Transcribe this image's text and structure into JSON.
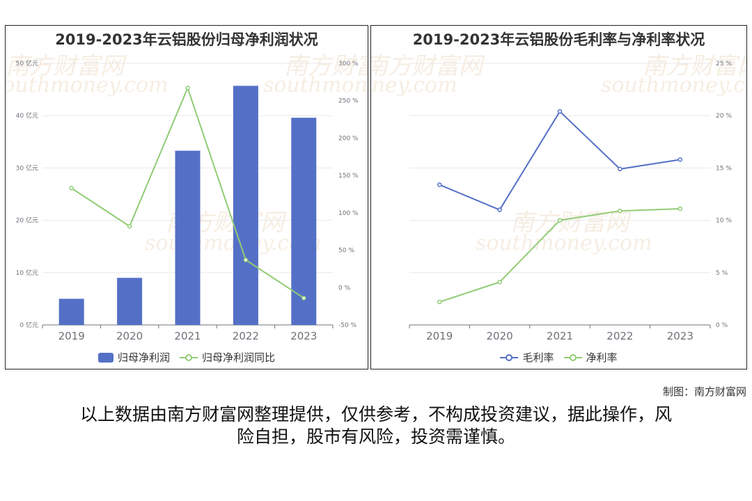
{
  "watermark": {
    "cn": "南方财富网",
    "en": "southmoney.com"
  },
  "credit": "制图：南方财富网",
  "disclaimer_line1": "以上数据由南方财富网整理提供，仅供参考，不构成投资建议，据此操作，风",
  "disclaimer_line2": "险自担，股市有风险，投资需谨慎。",
  "colors": {
    "blue": "#5470c6",
    "green": "#91cc75",
    "axis": "#6e7079",
    "grid": "#e8e8e8"
  },
  "chart_data": [
    {
      "type": "bar",
      "title": "2019-2023年云铝股份归母净利润状况",
      "categories": [
        "2019",
        "2020",
        "2021",
        "2022",
        "2023"
      ],
      "y_left": {
        "min": 0,
        "max": 50,
        "ticks": [
          0,
          10,
          20,
          30,
          40,
          50
        ],
        "unit": "亿元",
        "tick_labels": [
          "0 亿元",
          "10 亿元",
          "20 亿元",
          "30 亿元",
          "40 亿元",
          "50 亿元"
        ]
      },
      "y_right": {
        "min": -50,
        "max": 300,
        "ticks": [
          -50,
          0,
          50,
          100,
          150,
          200,
          250,
          300
        ],
        "unit": "%",
        "tick_labels": [
          "-50 %",
          "0 %",
          "50 %",
          "100 %",
          "150 %",
          "200 %",
          "250 %",
          "300 %"
        ]
      },
      "series": [
        {
          "name": "归母净利润",
          "kind": "bar",
          "axis": "left",
          "values": [
            5.0,
            9.0,
            33.3,
            45.7,
            39.6
          ]
        },
        {
          "name": "归母净利润同比",
          "kind": "line",
          "axis": "right",
          "values": [
            133,
            82,
            267,
            37,
            -14
          ]
        }
      ],
      "legend": "bottom-center",
      "grid": true
    },
    {
      "type": "line",
      "title": "2019-2023年云铝股份毛利率与净利率状况",
      "categories": [
        "2019",
        "2020",
        "2021",
        "2022",
        "2023"
      ],
      "y_right": {
        "min": 0,
        "max": 25,
        "ticks": [
          0,
          5,
          10,
          15,
          20,
          25
        ],
        "unit": "%",
        "tick_labels": [
          "0 %",
          "5 %",
          "10 %",
          "15 %",
          "20 %",
          "25 %"
        ]
      },
      "series": [
        {
          "name": "毛利率",
          "kind": "line",
          "axis": "right",
          "values": [
            13.4,
            11.0,
            20.4,
            14.9,
            15.8
          ]
        },
        {
          "name": "净利率",
          "kind": "line",
          "axis": "right",
          "values": [
            2.2,
            4.1,
            10.0,
            10.9,
            11.1
          ]
        }
      ],
      "legend": "bottom-center",
      "grid": true
    }
  ]
}
